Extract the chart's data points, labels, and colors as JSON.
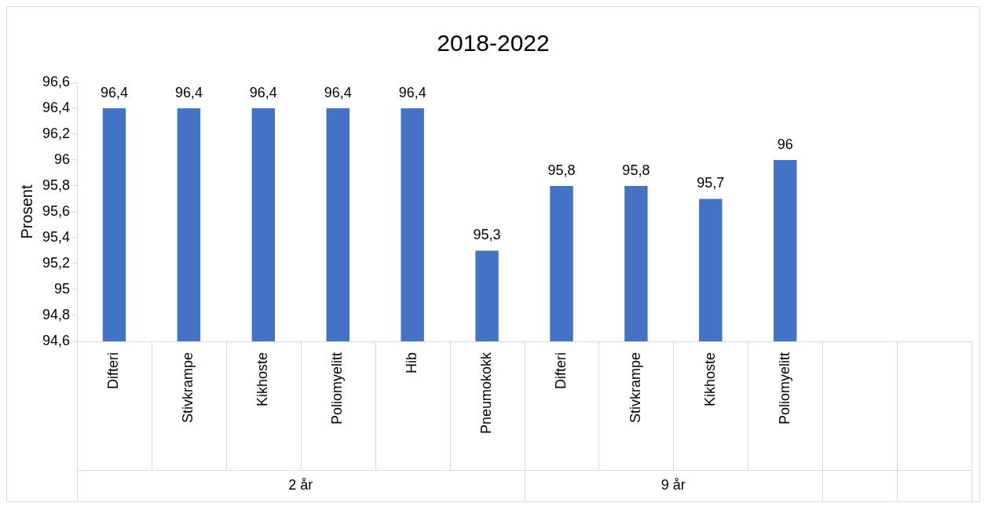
{
  "chart_data": {
    "type": "bar",
    "title": "2018-2022",
    "ylabel": "Prosent",
    "categories": [
      "Difteri",
      "Stivkrampe",
      "Kikhoste",
      "Poliomyelitt",
      "Hib",
      "Pneumokokk",
      "Difteri",
      "Stivkrampe",
      "Kikhoste",
      "Poliomyelitt",
      null,
      null
    ],
    "values": [
      96.4,
      96.4,
      96.4,
      96.4,
      96.4,
      95.3,
      95.8,
      95.8,
      95.7,
      96,
      null,
      null
    ],
    "value_labels": [
      "96,4",
      "96,4",
      "96,4",
      "96,4",
      "96,4",
      "95,3",
      "95,8",
      "95,8",
      "95,7",
      "96",
      null,
      null
    ],
    "color": "#4472c4",
    "ylim": [
      94.6,
      96.6
    ],
    "yticks": [
      {
        "value": 94.6,
        "label": "94,6"
      },
      {
        "value": 94.8,
        "label": "94,8"
      },
      {
        "value": 95,
        "label": "95"
      },
      {
        "value": 95.2,
        "label": "95,2"
      },
      {
        "value": 95.4,
        "label": "95,4"
      },
      {
        "value": 95.6,
        "label": "95,6"
      },
      {
        "value": 95.8,
        "label": "95,8"
      },
      {
        "value": 96,
        "label": "96"
      },
      {
        "value": 96.2,
        "label": "96,2"
      },
      {
        "value": 96.4,
        "label": "96,4"
      },
      {
        "value": 96.6,
        "label": "96,6"
      }
    ],
    "annotations": [
      "2 år",
      "9 år"
    ],
    "grid": false,
    "legend": false
  }
}
